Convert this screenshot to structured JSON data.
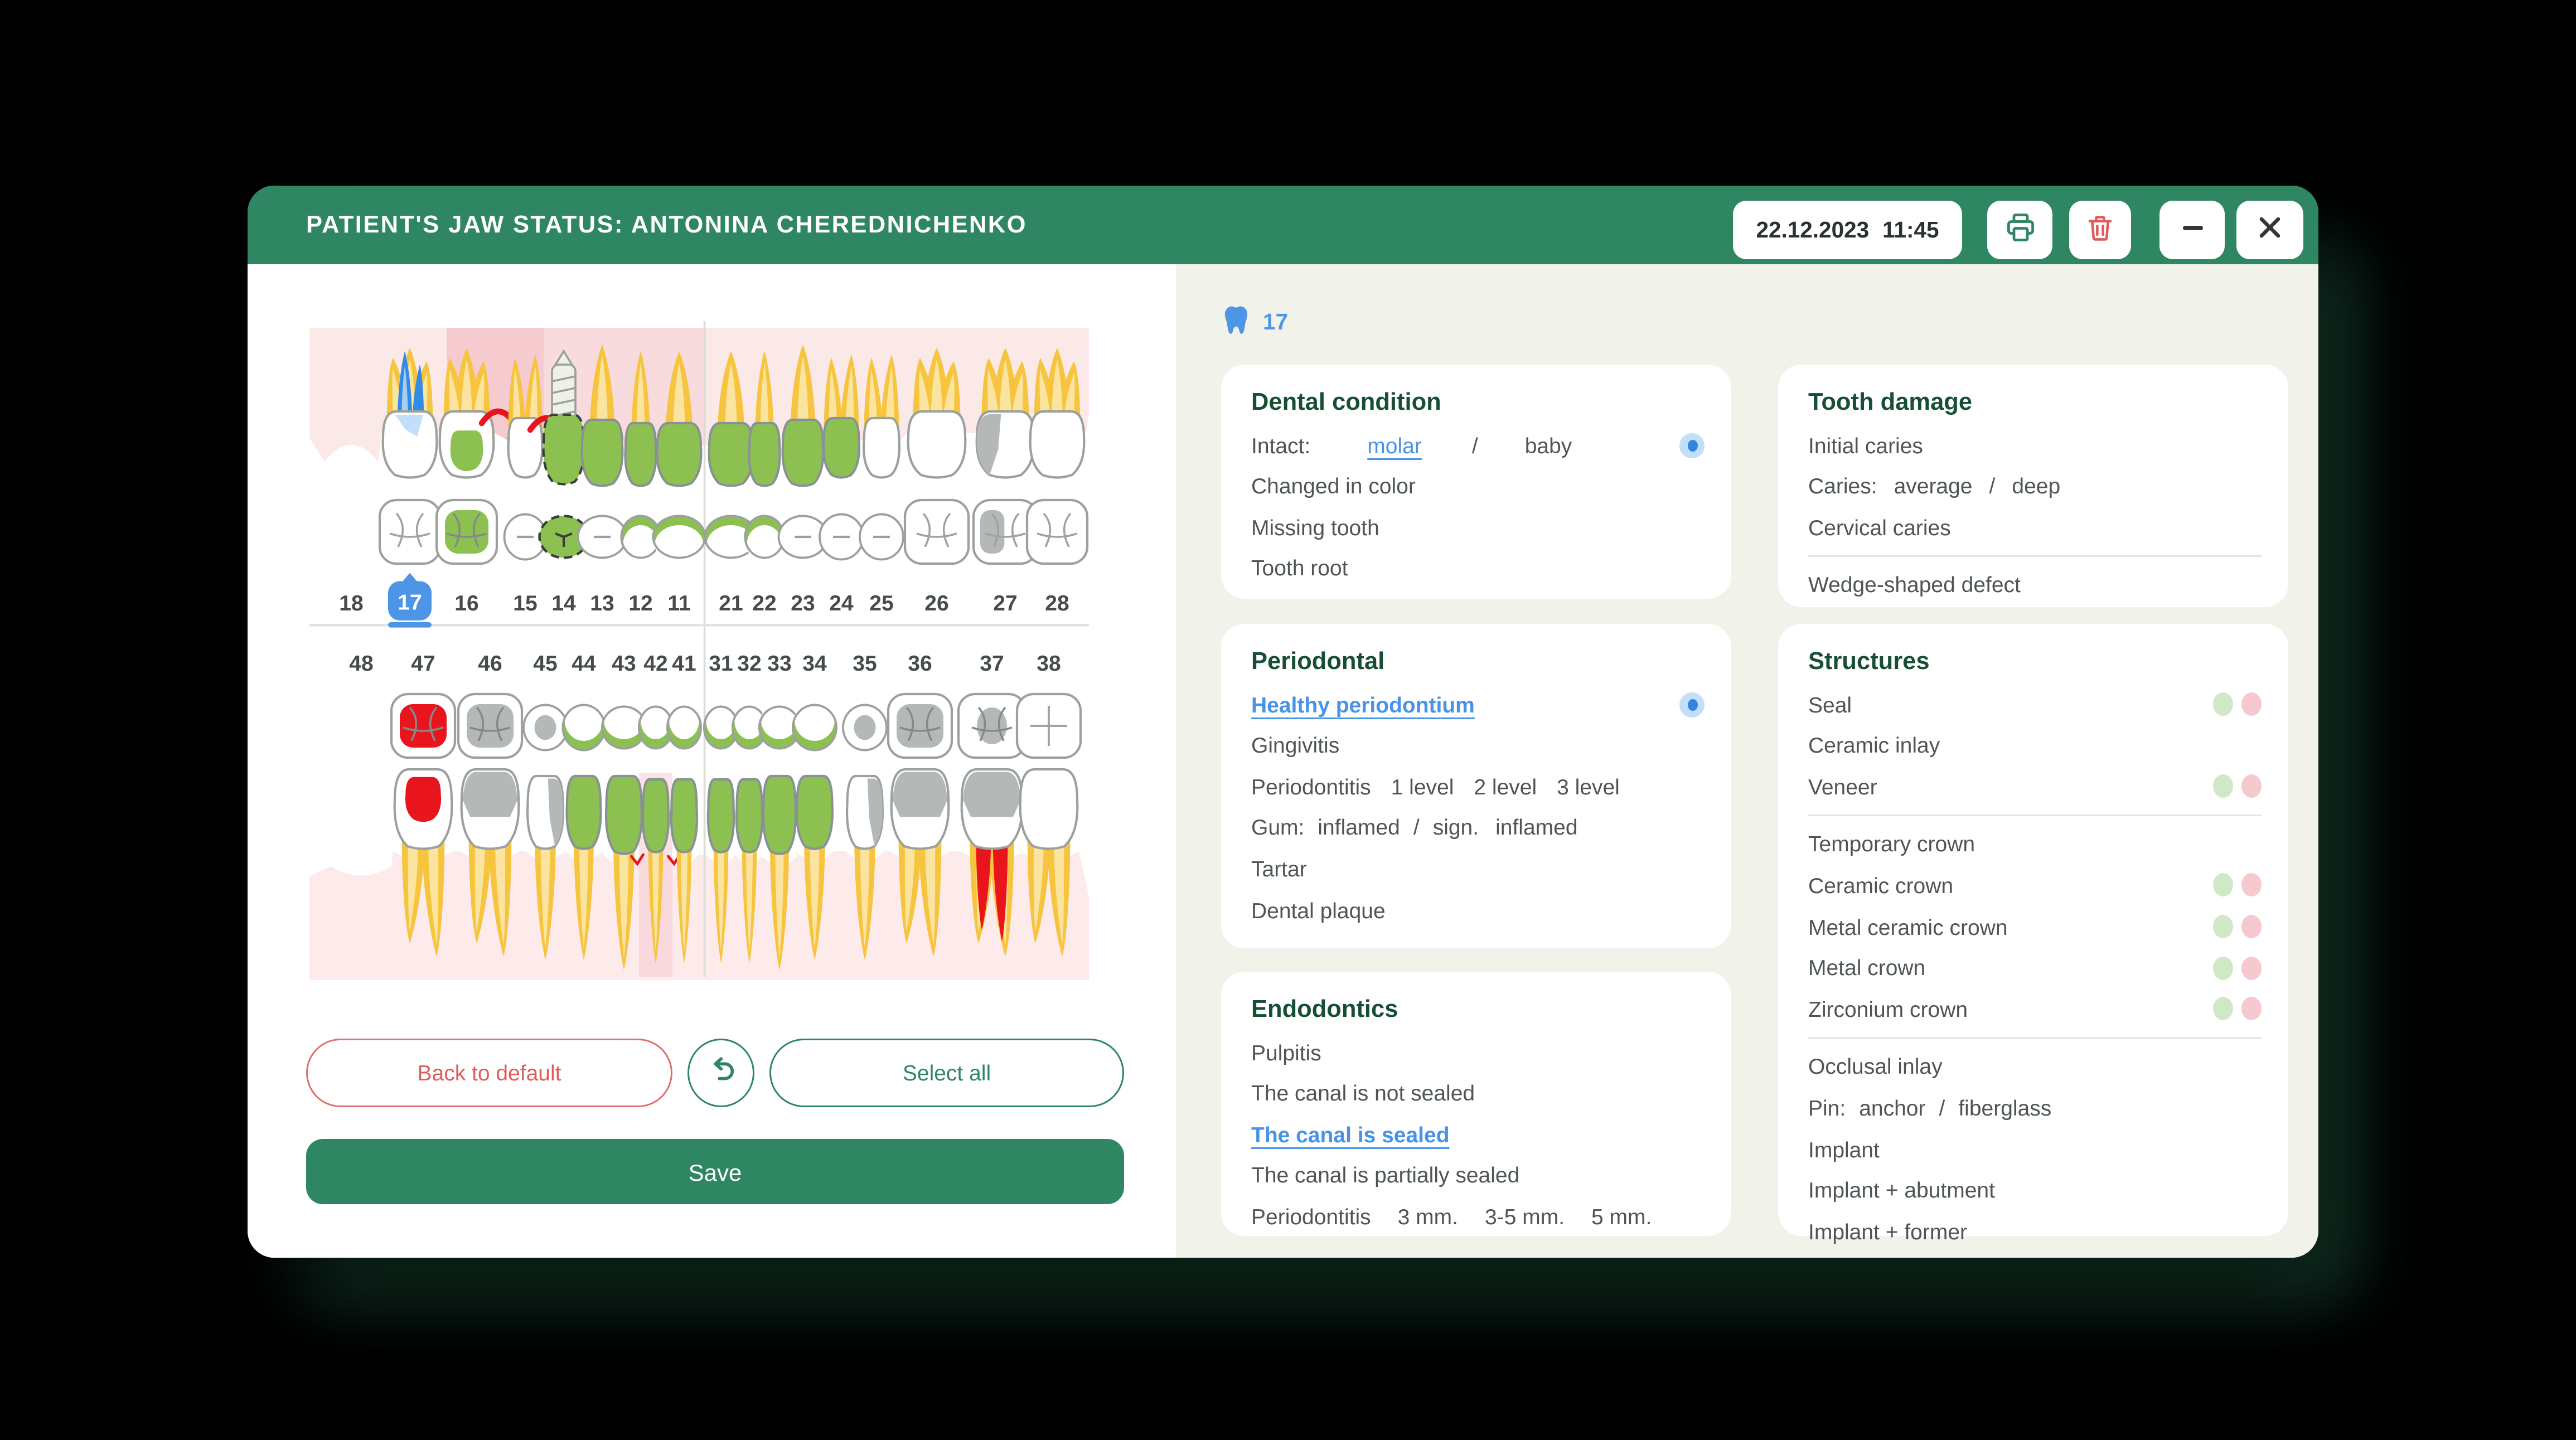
{
  "header": {
    "title": "PATIENT'S JAW STATUS: ANTONINA CHEREDNICHENKO",
    "date": "22.12.2023",
    "time": "11:45",
    "controls": [
      "print",
      "delete",
      "minimize",
      "close"
    ]
  },
  "colors": {
    "header_green": "#2E8762",
    "accent_blue": "#4D96E7",
    "danger_red": "#E05B5B",
    "panel_bg": "#FFFFFF",
    "right_bg": "#F1F2EA",
    "dot_green": "#CFE8C5",
    "dot_pink": "#F5C9CD"
  },
  "actions": {
    "back_to_default": "Back to default",
    "select_all": "Select all",
    "save": "Save"
  },
  "chart": {
    "selected_tooth": "17",
    "colors": {
      "yellow": "#F6C43E",
      "ylight": "#FBE3A0",
      "green": "#8CC152",
      "gray": "#B4B8B7",
      "red": "#E8151D",
      "blue": "#338BE8",
      "blight": "#A9CDF2",
      "stroke": "#9BA19F",
      "gum": "#FBE9E8",
      "gum_band": "#F5CBD0",
      "gum_lower": "#FCEBEA",
      "number": "#454C49"
    },
    "upper_teeth": [
      {
        "num": "18",
        "state": "missing"
      },
      {
        "num": "17",
        "selected": true,
        "type": "molar",
        "root": "blue",
        "crown": "white",
        "occlusal": "fissure"
      },
      {
        "num": "16",
        "type": "molar",
        "root": "yellow",
        "crown": "seal-green",
        "occlusal": "green",
        "marks": [
          "red-gum-right"
        ]
      },
      {
        "num": "15",
        "type": "premolar",
        "root": "yellow",
        "crown": "white",
        "occlusal": "dash",
        "marks": [
          "red-gum-right"
        ]
      },
      {
        "num": "14",
        "type": "implant",
        "crown": "green-dashed",
        "occlusal": "green-dashed"
      },
      {
        "num": "13",
        "type": "canine",
        "root": "yellow",
        "crown": "green",
        "occlusal": "dash"
      },
      {
        "num": "12",
        "type": "incisor",
        "root": "yellow",
        "crown": "green",
        "occlusal": "green-crescent"
      },
      {
        "num": "11",
        "type": "incisor",
        "root": "yellow",
        "crown": "green",
        "occlusal": "green-crescent"
      },
      {
        "num": "21",
        "type": "incisor",
        "root": "yellow",
        "crown": "green",
        "occlusal": "green-crescent"
      },
      {
        "num": "22",
        "type": "incisor",
        "root": "yellow",
        "crown": "green",
        "occlusal": "green-crescent"
      },
      {
        "num": "23",
        "type": "canine",
        "root": "yellow",
        "crown": "green",
        "occlusal": "dash"
      },
      {
        "num": "24",
        "type": "premolar",
        "root": "yellow",
        "crown": "green",
        "occlusal": "dash"
      },
      {
        "num": "25",
        "type": "premolar",
        "root": "yellow",
        "crown": "white",
        "occlusal": "dash"
      },
      {
        "num": "26",
        "type": "molar",
        "root": "yellow",
        "crown": "white",
        "occlusal": "fissure"
      },
      {
        "num": "27",
        "type": "molar",
        "root": "yellow",
        "crown": "gray-left",
        "occlusal": "gray-part"
      },
      {
        "num": "28",
        "type": "molar",
        "root": "yellow",
        "crown": "white",
        "occlusal": "fissure"
      }
    ],
    "lower_teeth": [
      {
        "num": "48",
        "state": "missing"
      },
      {
        "num": "47",
        "type": "molar",
        "root": "yellow",
        "crown": "seal-red",
        "occlusal": "red"
      },
      {
        "num": "46",
        "type": "molar",
        "root": "yellow",
        "crown": "gray-top",
        "occlusal": "gray"
      },
      {
        "num": "45",
        "type": "premolar",
        "root": "yellow",
        "crown": "gray-right",
        "occlusal": "gray-center"
      },
      {
        "num": "44",
        "type": "premolar",
        "root": "yellow",
        "crown": "green",
        "occlusal": "green-crescent"
      },
      {
        "num": "43",
        "type": "canine",
        "root": "yellow",
        "crown": "green",
        "occlusal": "green-crescent"
      },
      {
        "num": "42",
        "type": "incisor",
        "root": "yellow",
        "crown": "green",
        "occlusal": "green-crescent",
        "marks": [
          "pink-band",
          "red-gum-left",
          "red-gum-right"
        ]
      },
      {
        "num": "41",
        "type": "incisor",
        "root": "yellow",
        "crown": "green",
        "occlusal": "green-crescent"
      },
      {
        "num": "31",
        "type": "incisor",
        "root": "yellow",
        "crown": "green",
        "occlusal": "green-crescent"
      },
      {
        "num": "32",
        "type": "incisor",
        "root": "yellow",
        "crown": "green",
        "occlusal": "green-crescent"
      },
      {
        "num": "33",
        "type": "canine",
        "root": "yellow",
        "crown": "green",
        "occlusal": "green-crescent"
      },
      {
        "num": "34",
        "type": "premolar",
        "root": "yellow",
        "crown": "green",
        "occlusal": "green-crescent"
      },
      {
        "num": "35",
        "type": "premolar",
        "root": "yellow",
        "crown": "gray-right",
        "occlusal": "gray-center"
      },
      {
        "num": "36",
        "type": "molar",
        "root": "yellow",
        "crown": "gray-top",
        "occlusal": "gray"
      },
      {
        "num": "37",
        "type": "molar",
        "root": "red-canal",
        "crown": "gray-top",
        "occlusal": "gray-center"
      },
      {
        "num": "38",
        "type": "molar",
        "root": "yellow",
        "crown": "white",
        "occlusal": "fissure-cross"
      }
    ]
  },
  "panels": {
    "dental_condition": {
      "title": "Dental condition",
      "rows": [
        {
          "parts": [
            {
              "text": "Intact:"
            },
            {
              "text": "molar",
              "style": "link",
              "ml": 34
            },
            {
              "text": "/",
              "ml": 30
            },
            {
              "text": "baby",
              "ml": 28
            }
          ],
          "radio": true
        },
        {
          "parts": [
            {
              "text": "Changed in color"
            }
          ]
        },
        {
          "parts": [
            {
              "text": "Missing tooth"
            }
          ]
        },
        {
          "parts": [
            {
              "text": "Tooth root"
            }
          ]
        }
      ]
    },
    "periodontal": {
      "title": "Periodontal",
      "rows": [
        {
          "parts": [
            {
              "text": "Healthy periodontium",
              "style": "link-bold"
            }
          ],
          "radio": true
        },
        {
          "parts": [
            {
              "text": "Gingivitis"
            }
          ]
        },
        {
          "parts": [
            {
              "text": "Periodontitis"
            },
            {
              "text": "1 level",
              "ml": 12
            },
            {
              "text": "2 level",
              "ml": 12
            },
            {
              "text": "3 level",
              "ml": 12
            }
          ]
        },
        {
          "parts": [
            {
              "text": "Gum:"
            },
            {
              "text": "inflamed",
              "ml": 8
            },
            {
              "text": "/",
              "ml": 8
            },
            {
              "text": "sign.",
              "ml": 8
            },
            {
              "text": "inflamed",
              "ml": 10
            }
          ]
        },
        {
          "parts": [
            {
              "text": "Tartar"
            }
          ]
        },
        {
          "parts": [
            {
              "text": "Dental plaque"
            }
          ]
        }
      ]
    },
    "endodontics": {
      "title": "Endodontics",
      "rows": [
        {
          "parts": [
            {
              "text": "Pulpitis"
            }
          ]
        },
        {
          "parts": [
            {
              "text": "The canal is not sealed"
            }
          ]
        },
        {
          "parts": [
            {
              "text": "The canal is sealed",
              "style": "link-bold"
            }
          ]
        },
        {
          "parts": [
            {
              "text": "The canal is partially sealed"
            }
          ]
        },
        {
          "parts": [
            {
              "text": "Periodontitis"
            },
            {
              "text": "3 mm.",
              "ml": 16
            },
            {
              "text": "3-5 mm.",
              "ml": 16
            },
            {
              "text": "5 mm.",
              "ml": 16
            }
          ]
        }
      ]
    },
    "tooth_damage": {
      "title": "Tooth damage",
      "rows": [
        {
          "parts": [
            {
              "text": "Initial caries"
            }
          ]
        },
        {
          "parts": [
            {
              "text": "Caries:"
            },
            {
              "text": "average",
              "ml": 10
            },
            {
              "text": "/",
              "ml": 10
            },
            {
              "text": "deep",
              "ml": 10
            }
          ]
        },
        {
          "parts": [
            {
              "text": "Cervical caries"
            }
          ]
        },
        {
          "divider": true
        },
        {
          "parts": [
            {
              "text": "Wedge-shaped defect"
            }
          ]
        }
      ]
    },
    "structures": {
      "title": "Structures",
      "rows": [
        {
          "parts": [
            {
              "text": "Seal"
            }
          ],
          "dots": true
        },
        {
          "parts": [
            {
              "text": "Ceramic inlay"
            }
          ]
        },
        {
          "parts": [
            {
              "text": "Veneer"
            }
          ],
          "dots": true
        },
        {
          "divider": true
        },
        {
          "parts": [
            {
              "text": "Temporary crown"
            }
          ]
        },
        {
          "parts": [
            {
              "text": "Ceramic crown"
            }
          ],
          "dots": true
        },
        {
          "parts": [
            {
              "text": "Metal ceramic crown"
            }
          ],
          "dots": true
        },
        {
          "parts": [
            {
              "text": "Metal crown"
            }
          ],
          "dots": true
        },
        {
          "parts": [
            {
              "text": "Zirconium crown"
            }
          ],
          "dots": true
        },
        {
          "divider": true
        },
        {
          "parts": [
            {
              "text": "Occlusal inlay"
            }
          ]
        },
        {
          "parts": [
            {
              "text": "Pin:"
            },
            {
              "text": "anchor",
              "ml": 8
            },
            {
              "text": "/",
              "ml": 8
            },
            {
              "text": "fiberglass",
              "ml": 8
            }
          ]
        },
        {
          "parts": [
            {
              "text": "Implant"
            }
          ]
        },
        {
          "parts": [
            {
              "text": "Implant + abutment"
            }
          ]
        },
        {
          "parts": [
            {
              "text": "Implant + former"
            }
          ]
        }
      ]
    }
  }
}
